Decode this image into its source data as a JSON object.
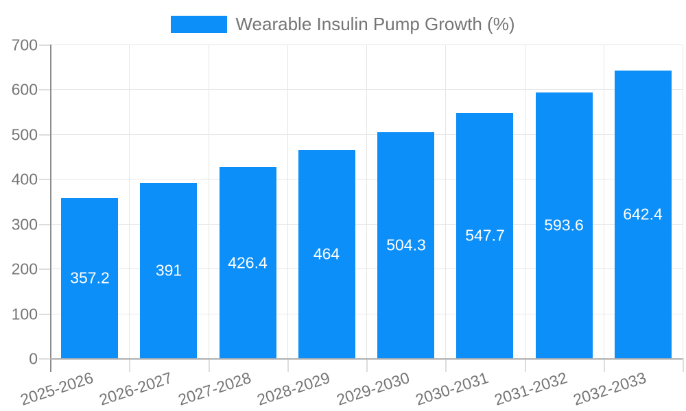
{
  "legend": {
    "label": "Wearable Insulin Pump Growth (%)"
  },
  "colors": {
    "bar": "#0d8ff9",
    "grid": "#e6e6e6",
    "axis_y": "#8c8c8c",
    "axis_x": "#b0b0b0",
    "tick": "#dddddd",
    "text": "#757575",
    "value_label": "#ffffff",
    "background": "#ffffff"
  },
  "chart_data": {
    "type": "bar",
    "title": "Wearable Insulin Pump Growth (%)",
    "categories": [
      "2025-2026",
      "2026-2027",
      "2027-2028",
      "2028-2029",
      "2029-2030",
      "2030-2031",
      "2031-2032",
      "2032-2033"
    ],
    "values": [
      357.2,
      391,
      426.4,
      464,
      504.3,
      547.7,
      593.6,
      642.4
    ],
    "value_labels": [
      "357.2",
      "391",
      "426.4",
      "464",
      "504.3",
      "547.7",
      "593.6",
      "642.4"
    ],
    "xlabel": "",
    "ylabel": "",
    "ylim": [
      0,
      700
    ],
    "ytick_interval": 100,
    "yticks": [
      "0",
      "100",
      "200",
      "300",
      "400",
      "500",
      "600",
      "700"
    ],
    "grid": true,
    "legend_position": "top",
    "value_label_position": "inside-center"
  }
}
